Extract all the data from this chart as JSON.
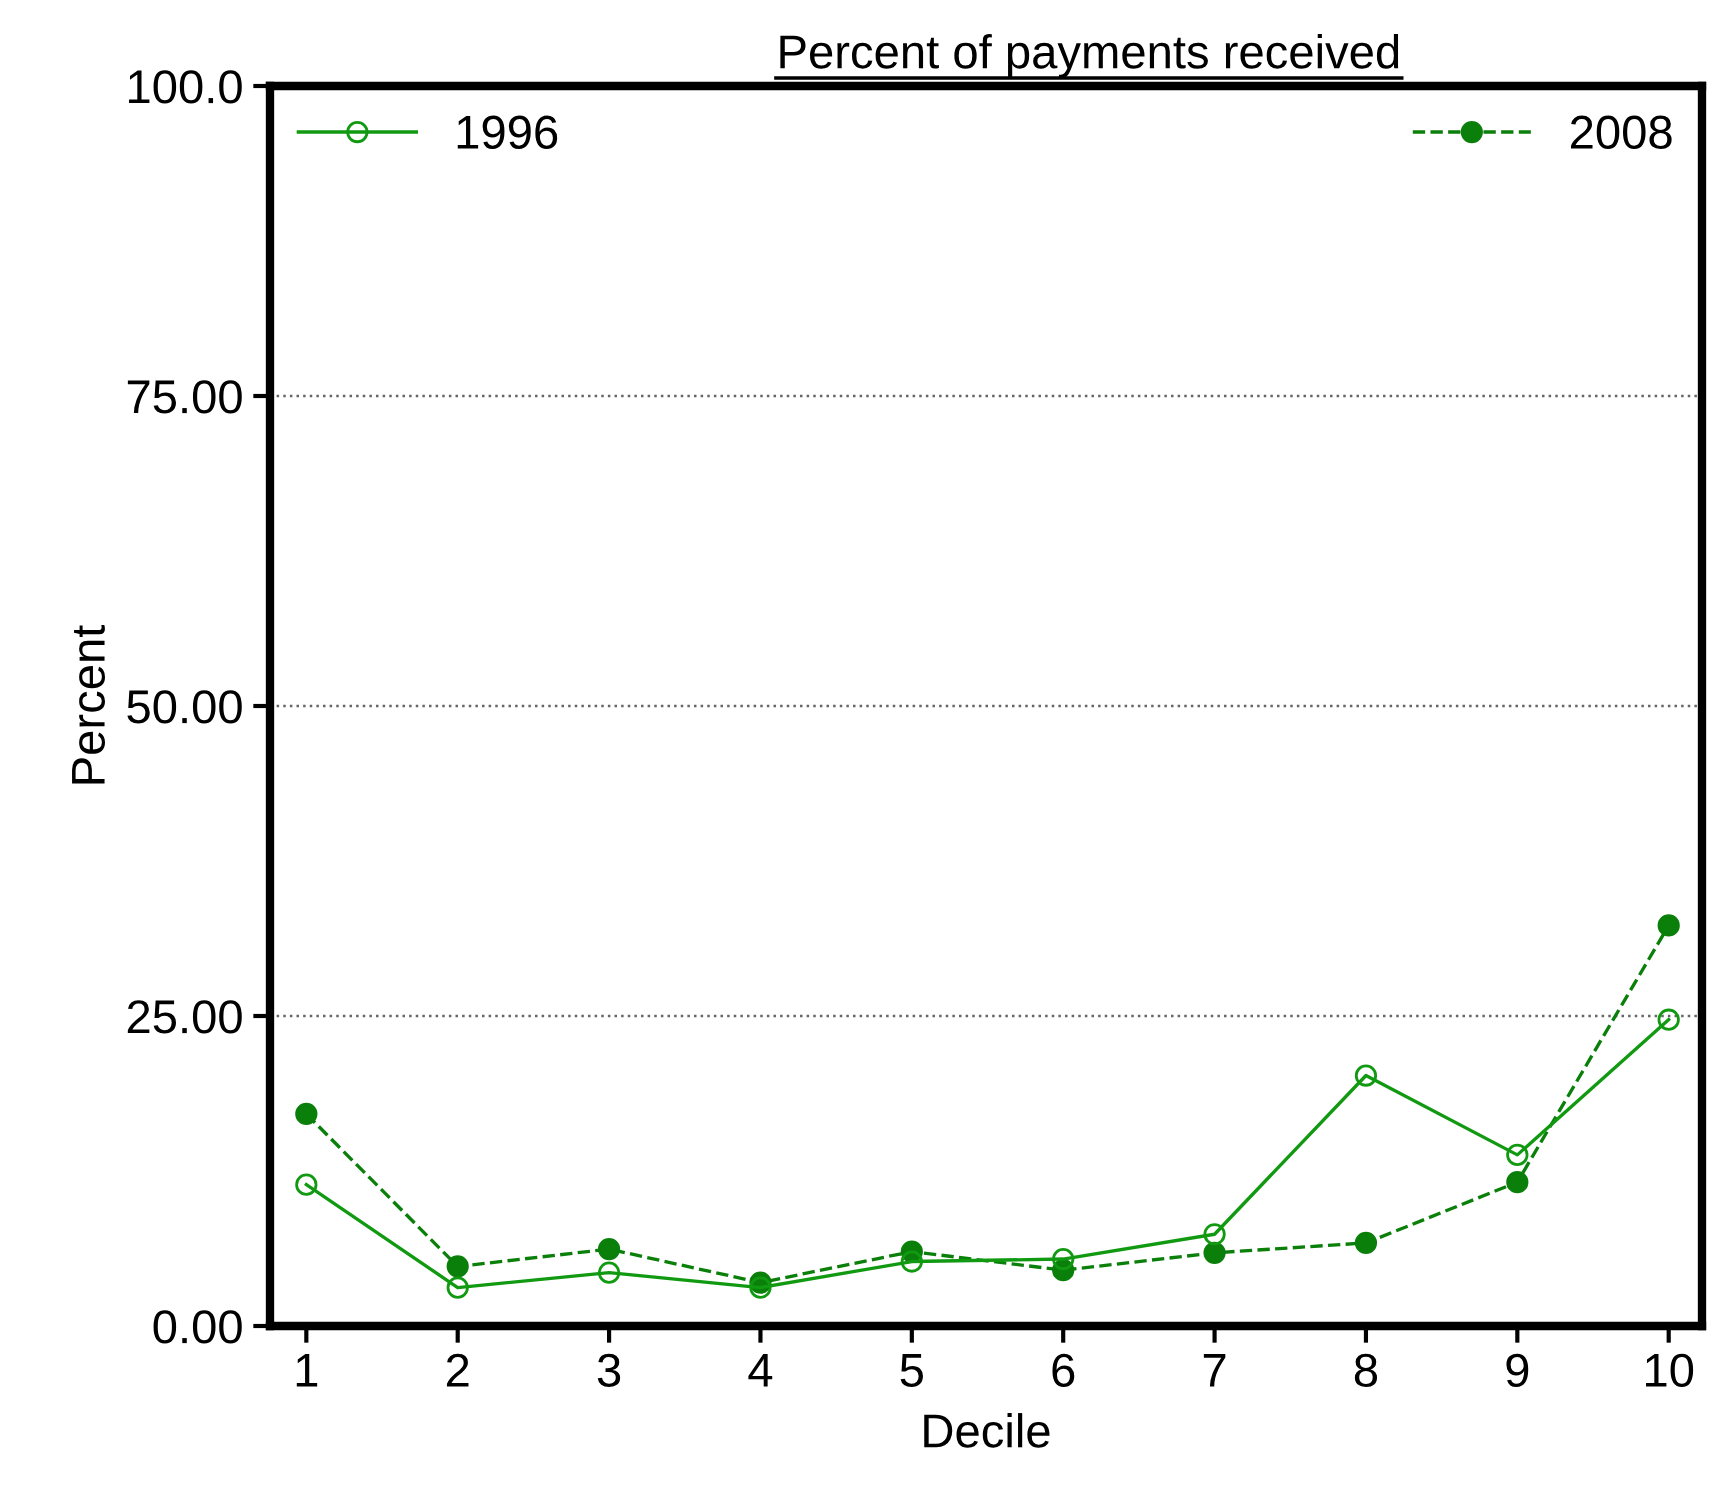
{
  "chart_data": {
    "type": "line",
    "title": "Percent of payments received",
    "xlabel": "Decile",
    "ylabel": "Percent",
    "categories": [
      "1",
      "2",
      "3",
      "4",
      "5",
      "6",
      "7",
      "8",
      "9",
      "10"
    ],
    "series": [
      {
        "name": "1996",
        "color": "#119a11",
        "values": [
          11.4,
          3.1,
          4.3,
          3.1,
          5.2,
          5.4,
          7.4,
          20.2,
          13.8,
          24.7
        ],
        "marker": "circle",
        "line_style": "solid"
      },
      {
        "name": "2008",
        "color": "#0a7f0a",
        "values": [
          17.1,
          4.8,
          6.2,
          3.5,
          6.0,
          4.5,
          5.9,
          6.7,
          11.6,
          32.3
        ],
        "marker": "circle",
        "line_style": "dashed"
      }
    ],
    "ylim": [
      0,
      100
    ],
    "yticks": [
      {
        "value": 0,
        "label": "0.00"
      },
      {
        "value": 25,
        "label": "25.00"
      },
      {
        "value": 50,
        "label": "50.00"
      },
      {
        "value": 75,
        "label": "75.00"
      },
      {
        "value": 100,
        "label": "100.0"
      }
    ],
    "grid": "y",
    "legend": "top"
  }
}
